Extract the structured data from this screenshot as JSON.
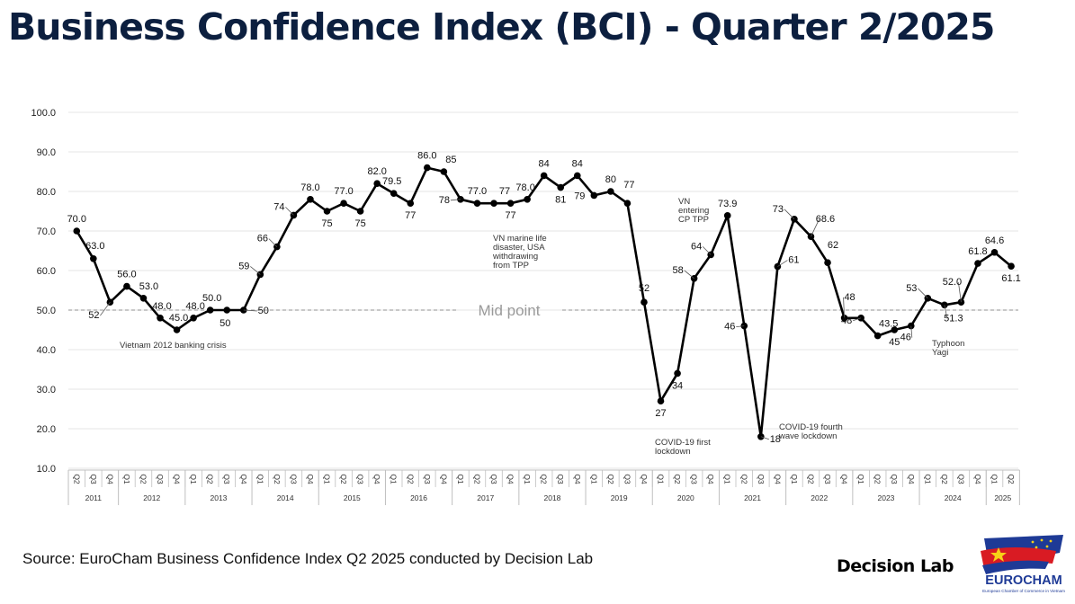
{
  "title": "Business Confidence Index (BCI) - Quarter 2/2025",
  "source": "Source: EuroCham Business Confidence Index Q2 2025 conducted by Decision Lab",
  "brand": "Decision Lab",
  "eurocham": {
    "name": "EUROCHAM",
    "subtitle": "European Chamber of Commerce in Vietnam",
    "colors": {
      "blue": "#1e3a96",
      "red": "#d91b23",
      "star": "#f7d117"
    }
  },
  "chart_data": {
    "type": "line",
    "title": "Business Confidence Index (BCI) - Quarter 2/2025",
    "xlabel": "",
    "ylabel": "",
    "ylim": [
      10,
      100
    ],
    "yticks": [
      "10.0",
      "20.0",
      "30.0",
      "40.0",
      "50.0",
      "60.0",
      "70.0",
      "80.0",
      "90.0",
      "100.0"
    ],
    "grid": true,
    "quarters": [
      "Q2",
      "Q3",
      "Q4",
      "Q1",
      "Q2",
      "Q3",
      "Q4",
      "Q1",
      "Q2",
      "Q3",
      "Q4",
      "Q1",
      "Q2",
      "Q3",
      "Q4",
      "Q1",
      "Q2",
      "Q3",
      "Q4",
      "Q1",
      "Q2",
      "Q3",
      "Q4",
      "Q1",
      "Q2",
      "Q3",
      "Q4",
      "Q1",
      "Q2",
      "Q3",
      "Q4",
      "Q1",
      "Q2",
      "Q3",
      "Q4",
      "Q1",
      "Q2",
      "Q3",
      "Q4",
      "Q1",
      "Q2",
      "Q3",
      "Q4",
      "Q1",
      "Q2",
      "Q3",
      "Q4",
      "Q1",
      "Q2",
      "Q3",
      "Q4",
      "Q1",
      "Q2",
      "Q3",
      "Q4",
      "Q1",
      "Q2"
    ],
    "years": [
      {
        "label": "2011",
        "count": 3
      },
      {
        "label": "2012",
        "count": 4
      },
      {
        "label": "2013",
        "count": 4
      },
      {
        "label": "2014",
        "count": 4
      },
      {
        "label": "2015",
        "count": 4
      },
      {
        "label": "2016",
        "count": 4
      },
      {
        "label": "2017",
        "count": 4
      },
      {
        "label": "2018",
        "count": 4
      },
      {
        "label": "2019",
        "count": 4
      },
      {
        "label": "2020",
        "count": 4
      },
      {
        "label": "2021",
        "count": 4
      },
      {
        "label": "2022",
        "count": 4
      },
      {
        "label": "2023",
        "count": 4
      },
      {
        "label": "2024",
        "count": 4
      },
      {
        "label": "2025",
        "count": 2
      }
    ],
    "series": [
      {
        "name": "BCI",
        "values": [
          70,
          63,
          52,
          56,
          53,
          48,
          45,
          48,
          50,
          50,
          50,
          59,
          66,
          74,
          78,
          75,
          77,
          75,
          82,
          79.5,
          77,
          86,
          85,
          78,
          77,
          77,
          77,
          78,
          84,
          81,
          84,
          79,
          80,
          77,
          52,
          27,
          34,
          58,
          64,
          73.9,
          46,
          18,
          61,
          73,
          68.6,
          62,
          48,
          48,
          43.5,
          45,
          46,
          53,
          51.3,
          52,
          61.8,
          64.6,
          61.1
        ],
        "labels": [
          "70.0",
          "63.0",
          "52",
          "56.0",
          "53.0",
          "48.0",
          "45.0",
          "48.0",
          "50.0",
          "50",
          "50",
          "59",
          "66",
          "74",
          "78.0",
          "75",
          "77.0",
          "75",
          "82.0",
          "79.5",
          "77",
          "86.0",
          "85",
          "78",
          "77.0",
          "77",
          "77",
          "78.0",
          "84",
          "81",
          "84",
          "79",
          "80",
          "77",
          "52",
          "27",
          "34",
          "58",
          "64",
          "73.9",
          "46",
          "18",
          "61",
          "73",
          "68.6",
          "62",
          "48",
          "48",
          "43.5",
          "45",
          "46",
          "53",
          "51.3",
          "52.0",
          "61.8",
          "64.6",
          "61.1"
        ]
      }
    ],
    "midpoint": {
      "value": 50,
      "label": "Mid point"
    },
    "annotations": [
      {
        "id": "banking",
        "lines": [
          "Vietnam 2012 banking crisis"
        ]
      },
      {
        "id": "marine",
        "lines": [
          "VN marine life",
          "disaster, USA",
          "withdrawing",
          "from TPP"
        ]
      },
      {
        "id": "cptpp",
        "lines": [
          "VN",
          "entering",
          "CP TPP"
        ]
      },
      {
        "id": "covid1",
        "lines": [
          "COVID-19 first",
          "lockdown"
        ]
      },
      {
        "id": "covid4",
        "lines": [
          "COVID-19 fourth",
          "wave lockdown"
        ]
      },
      {
        "id": "yagi",
        "lines": [
          "Typhoon",
          "Yagi"
        ]
      }
    ]
  }
}
